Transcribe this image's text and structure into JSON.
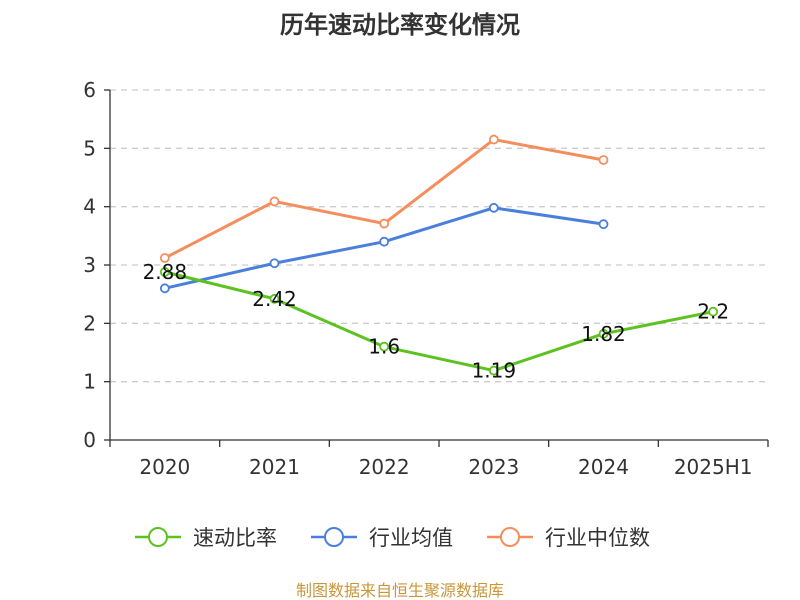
{
  "chart_data": {
    "type": "line",
    "title": "历年速动比率变化情况",
    "categories": [
      "2020",
      "2021",
      "2022",
      "2023",
      "2024",
      "2025H1"
    ],
    "ylim": [
      0,
      6
    ],
    "yticks": [
      0,
      1,
      2,
      3,
      4,
      5,
      6
    ],
    "grid": true,
    "legend_position": "bottom",
    "series": [
      {
        "name": "速动比率",
        "color": "#5cc21f",
        "values": [
          2.88,
          2.42,
          1.6,
          1.19,
          1.82,
          2.2
        ],
        "labels": [
          "2.88",
          "2.42",
          "1.6",
          "1.19",
          "1.82",
          "2.2"
        ]
      },
      {
        "name": "行业均值",
        "color": "#4a7fdc",
        "values": [
          2.6,
          3.03,
          3.4,
          3.98,
          3.7,
          null
        ]
      },
      {
        "name": "行业中位数",
        "color": "#f58d5c",
        "values": [
          3.12,
          4.09,
          3.71,
          5.15,
          4.8,
          null
        ]
      }
    ],
    "source": "制图数据来自恒生聚源数据库"
  }
}
